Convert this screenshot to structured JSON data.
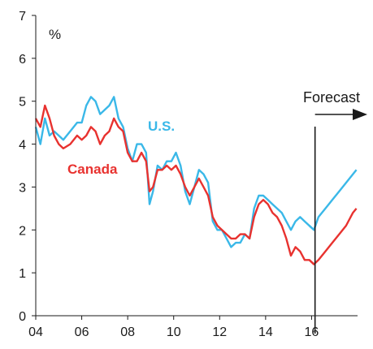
{
  "chart_data": {
    "type": "line",
    "title": "",
    "xlabel": "",
    "ylabel": "",
    "unit_label": "%",
    "xlim": [
      2004,
      2018
    ],
    "ylim": [
      0,
      7
    ],
    "x_ticks": [
      2004,
      2006,
      2008,
      2010,
      2012,
      2014,
      2016
    ],
    "x_tick_labels": [
      "04",
      "06",
      "08",
      "10",
      "12",
      "14",
      "16"
    ],
    "y_ticks": [
      0,
      1,
      2,
      3,
      4,
      5,
      6,
      7
    ],
    "y_tick_labels": [
      "0",
      "1",
      "2",
      "3",
      "4",
      "5",
      "6",
      "7"
    ],
    "grid": false,
    "forecast": {
      "label": "Forecast",
      "start_x": 2016.15
    },
    "colors": {
      "us": "#3ab8e8",
      "canada": "#e8322f",
      "axis": "#1a1a1a"
    },
    "series": [
      {
        "name": "U.S.",
        "color": "#3ab8e8",
        "x": [
          2004.0,
          2004.2,
          2004.4,
          2004.6,
          2004.8,
          2005.0,
          2005.2,
          2005.5,
          2005.8,
          2006.0,
          2006.2,
          2006.4,
          2006.6,
          2006.8,
          2007.0,
          2007.2,
          2007.4,
          2007.6,
          2007.8,
          2008.0,
          2008.2,
          2008.4,
          2008.6,
          2008.8,
          2008.95,
          2009.1,
          2009.3,
          2009.5,
          2009.7,
          2009.9,
          2010.1,
          2010.3,
          2010.5,
          2010.7,
          2010.9,
          2011.1,
          2011.3,
          2011.5,
          2011.7,
          2011.9,
          2012.1,
          2012.3,
          2012.5,
          2012.7,
          2012.9,
          2013.1,
          2013.3,
          2013.5,
          2013.7,
          2013.9,
          2014.1,
          2014.3,
          2014.5,
          2014.7,
          2014.9,
          2015.1,
          2015.3,
          2015.5,
          2015.7,
          2015.9,
          2016.1,
          2016.3,
          2016.6,
          2016.9,
          2017.2,
          2017.5,
          2017.8,
          2017.95
        ],
        "values": [
          4.4,
          4.0,
          4.6,
          4.2,
          4.3,
          4.2,
          4.1,
          4.3,
          4.5,
          4.5,
          4.9,
          5.1,
          5.0,
          4.7,
          4.8,
          4.9,
          5.1,
          4.6,
          4.4,
          3.9,
          3.6,
          4.0,
          4.0,
          3.8,
          2.6,
          2.9,
          3.5,
          3.4,
          3.6,
          3.6,
          3.8,
          3.5,
          2.9,
          2.6,
          3.0,
          3.4,
          3.3,
          3.1,
          2.2,
          2.0,
          2.0,
          1.8,
          1.6,
          1.7,
          1.7,
          1.9,
          1.8,
          2.5,
          2.8,
          2.8,
          2.7,
          2.6,
          2.5,
          2.4,
          2.2,
          2.0,
          2.2,
          2.3,
          2.2,
          2.1,
          2.0,
          2.3,
          2.5,
          2.7,
          2.9,
          3.1,
          3.3,
          3.4
        ]
      },
      {
        "name": "Canada",
        "color": "#e8322f",
        "x": [
          2004.0,
          2004.2,
          2004.4,
          2004.6,
          2004.8,
          2005.0,
          2005.2,
          2005.5,
          2005.8,
          2006.0,
          2006.2,
          2006.4,
          2006.6,
          2006.8,
          2007.0,
          2007.2,
          2007.4,
          2007.6,
          2007.8,
          2008.0,
          2008.2,
          2008.4,
          2008.6,
          2008.8,
          2008.95,
          2009.1,
          2009.3,
          2009.5,
          2009.7,
          2009.9,
          2010.1,
          2010.3,
          2010.5,
          2010.7,
          2010.9,
          2011.1,
          2011.3,
          2011.5,
          2011.7,
          2011.9,
          2012.1,
          2012.3,
          2012.5,
          2012.7,
          2012.9,
          2013.1,
          2013.3,
          2013.5,
          2013.7,
          2013.9,
          2014.1,
          2014.3,
          2014.5,
          2014.7,
          2014.9,
          2015.1,
          2015.3,
          2015.5,
          2015.7,
          2015.9,
          2016.1,
          2016.3,
          2016.6,
          2016.9,
          2017.2,
          2017.5,
          2017.8,
          2017.95
        ],
        "values": [
          4.6,
          4.4,
          4.9,
          4.6,
          4.2,
          4.0,
          3.9,
          4.0,
          4.2,
          4.1,
          4.2,
          4.4,
          4.3,
          4.0,
          4.2,
          4.3,
          4.6,
          4.4,
          4.3,
          3.8,
          3.6,
          3.6,
          3.8,
          3.6,
          2.9,
          3.0,
          3.4,
          3.4,
          3.5,
          3.4,
          3.5,
          3.3,
          3.0,
          2.8,
          3.0,
          3.2,
          3.0,
          2.8,
          2.3,
          2.1,
          2.0,
          1.9,
          1.8,
          1.8,
          1.9,
          1.9,
          1.8,
          2.3,
          2.6,
          2.7,
          2.6,
          2.4,
          2.3,
          2.1,
          1.8,
          1.4,
          1.6,
          1.5,
          1.3,
          1.3,
          1.2,
          1.3,
          1.5,
          1.7,
          1.9,
          2.1,
          2.4,
          2.5
        ]
      }
    ]
  }
}
